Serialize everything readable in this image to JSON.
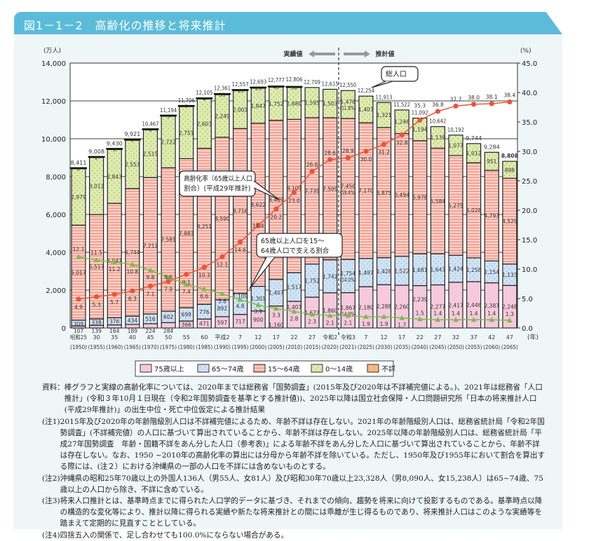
{
  "title": "図1－1－2　高齢化の推移と将来推計",
  "chart_data": {
    "type": "bar",
    "stacked": true,
    "left_axis": {
      "unit_label": "(万人)",
      "range": [
        0,
        14000
      ],
      "ticks": [
        "0",
        "2,000",
        "4,000",
        "6,000",
        "8,000",
        "10,000",
        "12,000",
        "14,000"
      ]
    },
    "right_axis": {
      "unit_label": "(%)",
      "range": [
        0,
        45
      ],
      "ticks": [
        "0.0",
        "5.0",
        "10.0",
        "15.0",
        "20.0",
        "25.0",
        "30.0",
        "35.0",
        "40.0",
        "45.0"
      ]
    },
    "x_unit_label": "(年)",
    "era_labels": [
      "昭和25",
      "30",
      "35",
      "40",
      "45",
      "50",
      "55",
      "60",
      "平成2",
      "7",
      "12",
      "17",
      "22",
      "27",
      "令和2",
      "令和3",
      "7",
      "12",
      "17",
      "22",
      "27",
      "32",
      "37",
      "42",
      "47"
    ],
    "years": [
      "(1950)",
      "(1955)",
      "(1960)",
      "(1965)",
      "(1970)",
      "(1975)",
      "(1980)",
      "(1985)",
      "(1990)",
      "(1995)",
      "(2000)",
      "(2005)",
      "(2010)",
      "(2015)",
      "(2020)",
      "(2021)",
      "(2025)",
      "(2030)",
      "(2035)",
      "(2040)",
      "(2045)",
      "(2050)",
      "(2055)",
      "(2060)",
      "(2065)"
    ],
    "series": [
      {
        "name": "75歳以上",
        "color": "#f6c9dc",
        "values": [
          107,
          139,
          164,
          189,
          224,
          284,
          366,
          471,
          597,
          717,
          900,
          1160,
          1407,
          1627,
          1860,
          1867,
          2180,
          2288,
          2260,
          2239,
          2277,
          2417,
          2446,
          2387,
          2248
        ]
      },
      {
        "name": "65～74歳",
        "color": "#cfe3f5",
        "values": [
          309,
          338,
          376,
          434,
          516,
          602,
          699,
          776,
          892,
          1109,
          1301,
          1407,
          1517,
          1752,
          1742,
          1754,
          1497,
          1428,
          1522,
          1681,
          1643,
          1424,
          1258,
          1154,
          1133
        ]
      },
      {
        "name": "15～64歳",
        "color": "#f4a496",
        "values": [
          5017,
          5517,
          6047,
          6744,
          7212,
          7581,
          7883,
          8251,
          8590,
          8716,
          8622,
          8409,
          8103,
          7735,
          7509,
          7450,
          7170,
          6875,
          6494,
          5978,
          5584,
          5275,
          5028,
          4793,
          4529
        ]
      },
      {
        "name": "0～14歳",
        "color": "#dfeab0",
        "values": [
          2979,
          3012,
          2843,
          2553,
          2515,
          2722,
          2751,
          2603,
          2249,
          2001,
          1847,
          1752,
          1680,
          1595,
          1503,
          1478,
          1407,
          1321,
          1246,
          1194,
          1138,
          1077,
          1012,
          951,
          898
        ]
      },
      {
        "name": "不詳",
        "color": "#f7b87a",
        "values": [
          0,
          2,
          0,
          0,
          0,
          5,
          7,
          4,
          33,
          13,
          23,
          48,
          98,
          null,
          null,
          null,
          null,
          null,
          null,
          null,
          null,
          null,
          null,
          null,
          null
        ]
      }
    ],
    "totals": [
      8411,
      9008,
      9430,
      9921,
      10467,
      11194,
      11706,
      12105,
      12361,
      12557,
      12693,
      12777,
      12806,
      12709,
      12615,
      12550,
      12254,
      11913,
      11522,
      11092,
      10642,
      10192,
      9744,
      9284,
      8808
    ],
    "shares_2021": {
      "75歳以上": "(14.9%)",
      "65～74歳": "(14.0%)",
      "15～64歳": "(59.4%)",
      "0～14歳": "(11.8%)"
    },
    "lines": [
      {
        "name": "高齢化率（65歳以上人口割合）(平成29年推計)",
        "axis": "right",
        "color": "#e8553a",
        "marker": "circle",
        "values": [
          4.9,
          5.3,
          5.7,
          6.3,
          7.1,
          7.9,
          9.1,
          10.3,
          12.1,
          14.6,
          17.4,
          20.2,
          23.0,
          26.6,
          28.6,
          28.9,
          30.0,
          31.2,
          32.8,
          35.3,
          36.8,
          37.7,
          38.0,
          38.1,
          38.4
        ]
      },
      {
        "name": "65歳以上人口を15～64歳人口で支える割合",
        "axis": "right",
        "color": "#7dbb50",
        "marker": "triangle",
        "values": [
          12.1,
          11.5,
          11.2,
          10.8,
          9.8,
          8.6,
          7.4,
          6.6,
          5.8,
          4.8,
          3.9,
          3.3,
          2.8,
          2.3,
          2.1,
          2.1,
          1.9,
          1.9,
          1.7,
          1.5,
          1.4,
          1.4,
          1.4,
          1.4,
          1.3
        ]
      }
    ],
    "total_label": "総人口",
    "actual_label": "実績値",
    "projection_label": "推計値",
    "legend": [
      "75歳以上",
      "65～74歳",
      "15～64歳",
      "0～14歳",
      "不詳"
    ],
    "grid": true
  },
  "notes": [
    {
      "label": "資料：",
      "text": "棒グラフと実線の高齢化率については、2020年までは総務省「国勢調査」(2015年及び2020年は不詳補完値による。)、2021年は総務省「人口推計」(令和３年10月１日現在（令和2年国勢調査を基準とする推計値))、2025年以降は国立社会保障・人口問題研究所「日本の将来推計人口(平成29年推計)」の出生中位・死亡中位仮定による推計結果"
    },
    {
      "label": "(注1)",
      "text": "2015年及び2020年の年齢階級別人口は不詳補完値によるため、年齢不詳は存在しない。2021年の年齢階級別人口は、総務省統計局「令和2年国勢調査」(不詳補完値）の人口に基づいて算出されていることから、年齢不詳は存在しない。2025年以降の年齢階級別人口は、総務省統計局「平成27年国勢調査　年齢・国籍不詳をあん分した人口（参考表)」による年齢不詳をあん分した人口に基づいて算出されていることから、年齢不詳は存在しない。なお、1950 ~2010年の高齢化率の算出には分母から年齢不詳を除いている。ただし、1950年及び1955年において割合を算出する際には、(注２）における沖縄県の一部の人口を不詳には含めないものとする。"
    },
    {
      "label": "(注2)",
      "text": "沖縄県の昭和25年70歳以上の外国人136人（男55人、女81人）及び昭和30年70歳以上23,328人（男8,090人、女15,238人）は65~74歳、75歳以上の人口から除き、不詳に含めている。"
    },
    {
      "label": "(注3)",
      "text": "将来人口推計とは、基準時点までに得られた人口学的データに基づき、それまでの傾向、趨勢を将来に向けて投影するものである。基準時点以降の構造的な変化等により、推計以降に得られる実績や新たな将来推計との間には乖離が生じ得るものであり、将来推計人口はこのような実績等を踏まえて定期的に見直すこととしている。"
    },
    {
      "label": "(注4)",
      "text": "四捨五入の関係で、足し合わせても100.0%にならない場合がある。"
    }
  ]
}
